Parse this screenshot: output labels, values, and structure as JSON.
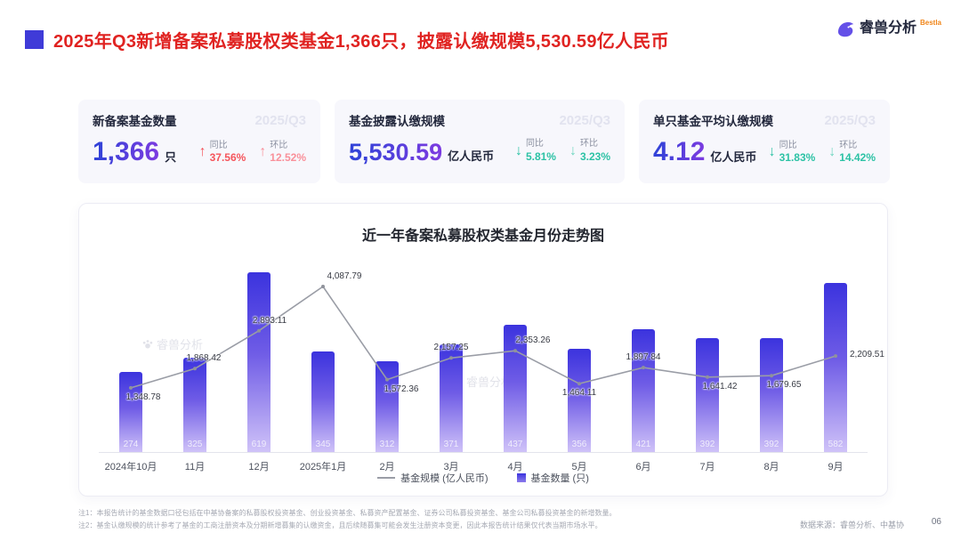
{
  "header": {
    "title": "2025年Q3新增备案私募股权类基金1,366只，披露认缴规模5,530.59亿人民币",
    "logo_text": "睿兽分析",
    "logo_sub": "Bestla"
  },
  "watermark": "睿兽分析",
  "stats": [
    {
      "label": "新备案基金数量",
      "period": "2025/Q3",
      "value": "1,366",
      "unit": "只",
      "yoy_label": "同比",
      "yoy_value": "37.56%",
      "yoy_direction": "up",
      "mom_label": "环比",
      "mom_value": "12.52%",
      "mom_direction": "up"
    },
    {
      "label": "基金披露认缴规模",
      "period": "2025/Q3",
      "value": "5,530.59",
      "unit": "亿人民币",
      "yoy_label": "同比",
      "yoy_value": "5.81%",
      "yoy_direction": "down",
      "mom_label": "环比",
      "mom_value": "3.23%",
      "mom_direction": "down"
    },
    {
      "label": "单只基金平均认缴规模",
      "period": "2025/Q3",
      "value": "4.12",
      "unit": "亿人民币",
      "yoy_label": "同比",
      "yoy_value": "31.83%",
      "yoy_direction": "down",
      "mom_label": "环比",
      "mom_value": "14.42%",
      "mom_direction": "down"
    }
  ],
  "chart_data": {
    "type": "bar+line",
    "title": "近一年备案私募股权类基金月份走势图",
    "categories": [
      "2024年10月",
      "11月",
      "12月",
      "2025年1月",
      "2月",
      "3月",
      "4月",
      "5月",
      "6月",
      "7月",
      "8月",
      "9月"
    ],
    "series": [
      {
        "name": "基金规模 (亿人民币)",
        "type": "line",
        "values": [
          1348.78,
          1868.42,
          2893.11,
          4087.79,
          1572.36,
          2157.25,
          2353.26,
          1464.11,
          1897.84,
          1641.42,
          1679.65,
          2209.51
        ]
      },
      {
        "name": "基金数量 (只)",
        "type": "bar",
        "values": [
          274,
          325,
          619,
          345,
          312,
          371,
          437,
          356,
          421,
          392,
          392,
          582
        ]
      }
    ],
    "label_sides": [
      "below",
      "above",
      "above",
      "above",
      "below",
      "above",
      "above",
      "below",
      "above",
      "below",
      "below",
      "right"
    ],
    "label_dx": [
      14,
      10,
      12,
      24,
      16,
      0,
      20,
      0,
      0,
      14,
      14,
      8
    ],
    "ylim_bar": [
      0,
      650
    ],
    "grid": false,
    "legend_position": "bottom"
  },
  "footer": {
    "note1": "注1：本报告统计的基金数据口径包括在中基协备案的私募股权投资基金、创业投资基金、私募资产配置基金、证券公司私募投资基金、基金公司私募投资基金的新增数量。",
    "note2": "注2：基金认缴规模的统计参考了基金的工商注册资本及分期新增募集的认缴资金，且后续随募集可能会发生注册资本变更，因此本报告统计结果仅代表当期市场水平。",
    "source": "数据来源：睿兽分析、中基协",
    "page": "06"
  },
  "colors": {
    "accent": "#3f3bd8",
    "title_red": "#e02321",
    "up": "#f5555c",
    "up_light": "#f9909a",
    "down": "#2cc2a5",
    "bar_top": "#3b33de",
    "bar_bottom": "#cfc2f8",
    "line": "#9a9da6"
  }
}
